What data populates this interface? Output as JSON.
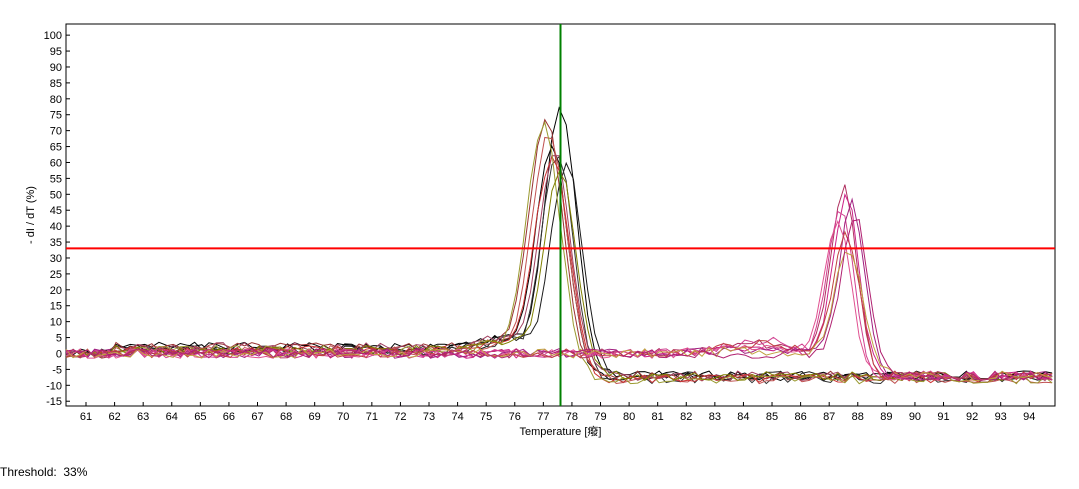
{
  "chart_data": {
    "type": "line",
    "xlabel": "Temperature [癈]",
    "ylabel": "- dI / dT  (%)",
    "xlim": [
      60.3,
      94.9
    ],
    "ylim": [
      -16.5,
      103.5
    ],
    "x_ticks": [
      61,
      62,
      63,
      64,
      65,
      66,
      67,
      68,
      69,
      70,
      71,
      72,
      73,
      74,
      75,
      76,
      77,
      78,
      79,
      80,
      81,
      82,
      83,
      84,
      85,
      86,
      87,
      88,
      89,
      90,
      91,
      92,
      93,
      94
    ],
    "y_ticks": [
      -15,
      -10,
      -5,
      0,
      5,
      10,
      15,
      20,
      25,
      30,
      35,
      40,
      45,
      50,
      55,
      60,
      65,
      70,
      75,
      80,
      85,
      90,
      95,
      100
    ],
    "grid": false,
    "threshold_line": {
      "value": 33,
      "color": "#ff0000"
    },
    "cursor_line": {
      "x": 77.6,
      "color": "#008000"
    },
    "series": [
      {
        "color": "#000000",
        "type": "single",
        "peak_x": 77.6,
        "peak_y": 77,
        "width": 0.55,
        "pre": 2,
        "post": -7,
        "seed": 1
      },
      {
        "color": "#000000",
        "type": "single",
        "peak_x": 77.3,
        "peak_y": 66,
        "width": 0.55,
        "pre": 2,
        "post": -7,
        "seed": 2
      },
      {
        "color": "#1a1a1a",
        "type": "single",
        "peak_x": 77.8,
        "peak_y": 60,
        "width": 0.55,
        "pre": 1,
        "post": -7,
        "seed": 3
      },
      {
        "color": "#333333",
        "type": "single",
        "peak_x": 77.5,
        "peak_y": 63,
        "width": 0.55,
        "pre": 1,
        "post": -8,
        "seed": 4
      },
      {
        "color": "#993333",
        "type": "single",
        "peak_x": 77.1,
        "peak_y": 73,
        "width": 0.6,
        "pre": 2,
        "post": -7,
        "seed": 5
      },
      {
        "color": "#c05050",
        "type": "single",
        "peak_x": 77.2,
        "peak_y": 70,
        "width": 0.6,
        "pre": 1,
        "post": -8,
        "seed": 6
      },
      {
        "color": "#a04060",
        "type": "single",
        "peak_x": 77.4,
        "peak_y": 64,
        "width": 0.55,
        "pre": 2,
        "post": -7,
        "seed": 7
      },
      {
        "color": "#cc3333",
        "type": "single",
        "peak_x": 77.3,
        "peak_y": 62,
        "width": 0.6,
        "pre": 1,
        "post": -8,
        "seed": 8
      },
      {
        "color": "#9a9a30",
        "type": "single",
        "peak_x": 77.0,
        "peak_y": 72,
        "width": 0.6,
        "pre": 1,
        "post": -8,
        "seed": 9
      },
      {
        "color": "#808000",
        "type": "single",
        "peak_x": 77.6,
        "peak_y": 58,
        "width": 0.55,
        "pre": 1,
        "post": -7,
        "seed": 10
      },
      {
        "color": "#b03060",
        "type": "late",
        "peak_x": 87.5,
        "peak_y": 52,
        "width": 0.45,
        "shoulder": 3,
        "seed": 11
      },
      {
        "color": "#cc2288",
        "type": "late",
        "peak_x": 87.6,
        "peak_y": 49,
        "width": 0.45,
        "shoulder": 2,
        "seed": 12
      },
      {
        "color": "#d04090",
        "type": "late",
        "peak_x": 87.4,
        "peak_y": 45,
        "width": 0.45,
        "shoulder": 4,
        "seed": 13
      },
      {
        "color": "#a02080",
        "type": "late",
        "peak_x": 87.8,
        "peak_y": 47,
        "width": 0.45,
        "shoulder": 1,
        "seed": 14
      },
      {
        "color": "#e05090",
        "type": "late",
        "peak_x": 87.3,
        "peak_y": 42,
        "width": 0.45,
        "shoulder": 2,
        "seed": 15
      },
      {
        "color": "#c04040",
        "type": "late",
        "peak_x": 87.6,
        "peak_y": 38,
        "width": 0.45,
        "shoulder": 3,
        "seed": 16
      },
      {
        "color": "#c0a040",
        "type": "late",
        "peak_x": 87.7,
        "peak_y": 33,
        "width": 0.5,
        "shoulder": 1,
        "seed": 17
      },
      {
        "color": "#b02070",
        "type": "late",
        "peak_x": 87.9,
        "peak_y": 44,
        "width": 0.45,
        "shoulder": 0,
        "seed": 18
      }
    ]
  },
  "footer": {
    "threshold_label": "Threshold:",
    "threshold_value": "33%"
  }
}
